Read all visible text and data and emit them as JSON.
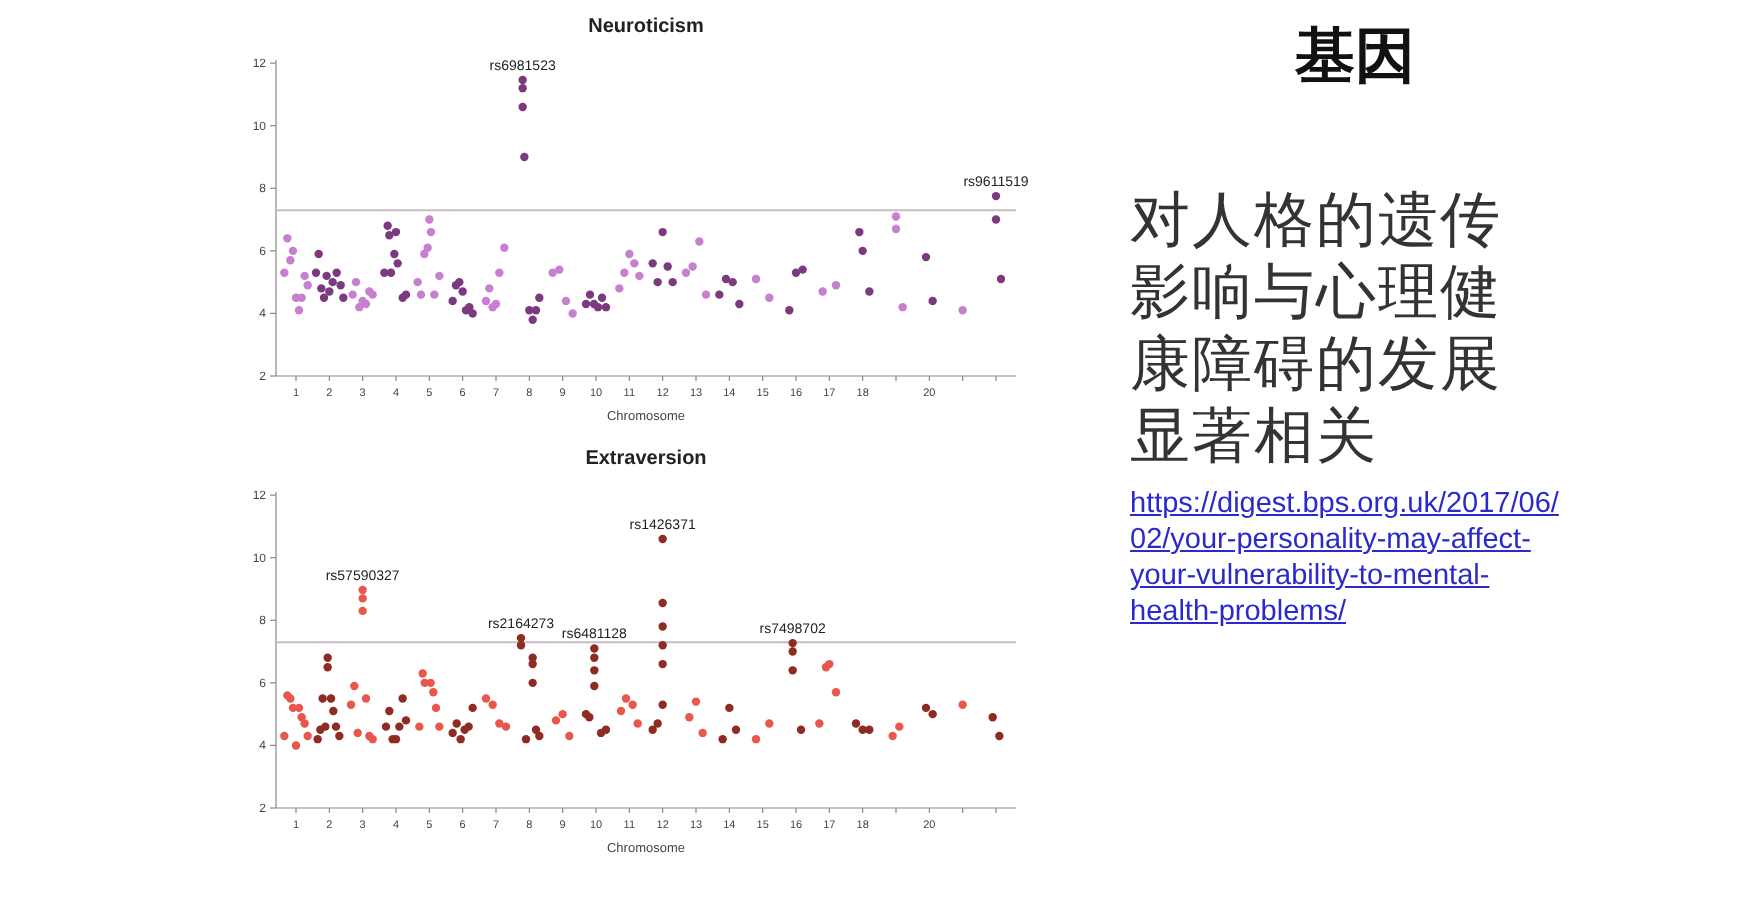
{
  "chart_data": [
    {
      "type": "scatter",
      "title": "Neuroticism",
      "xlabel": "Chromosome",
      "marker": "circle",
      "xlim": [
        0.4,
        22.6
      ],
      "ylim": [
        2,
        12.1
      ],
      "yticks": [
        2,
        4,
        6,
        8,
        10,
        12
      ],
      "xticks": [
        1,
        2,
        3,
        4,
        5,
        6,
        7,
        8,
        9,
        10,
        11,
        12,
        13,
        14,
        15,
        16,
        17,
        18,
        {
          "value": 19,
          "label": null
        },
        20,
        {
          "value": 21,
          "label": null
        },
        {
          "value": 22,
          "label": null
        }
      ],
      "ref_lines": [
        {
          "axis": "y",
          "value": 7.3,
          "color": "#c9bcc4"
        }
      ],
      "annotations": [
        {
          "text": "rs6981523",
          "x": 7.8,
          "y": 11.46
        },
        {
          "text": "rs9611519",
          "x": 22.0,
          "y": 7.75
        }
      ],
      "series": [
        {
          "color": "#c77fcf",
          "x": [
            0.65,
            0.74,
            0.83,
            0.91,
            1.0,
            1.09,
            1.17,
            1.26,
            1.35,
            2.7,
            2.8,
            2.9,
            3.0,
            3.1,
            3.2,
            3.3,
            4.65,
            4.75,
            4.85,
            4.95,
            5.0,
            5.05,
            5.15,
            5.3,
            6.7,
            6.8,
            6.9,
            7.0,
            7.1,
            7.25,
            8.7,
            8.9,
            9.1,
            9.3,
            10.7,
            10.85,
            11.0,
            11.15,
            11.3,
            12.7,
            12.9,
            13.1,
            13.3,
            14.8,
            15.2,
            16.8,
            17.2,
            19.0,
            19.0,
            19.2,
            21.0
          ],
          "values": [
            5.3,
            6.4,
            5.7,
            6.0,
            4.5,
            4.1,
            4.5,
            5.2,
            4.9,
            4.6,
            5.0,
            4.2,
            4.4,
            4.3,
            4.7,
            4.6,
            5.0,
            4.6,
            5.9,
            6.1,
            7.0,
            6.6,
            4.6,
            5.2,
            4.4,
            4.8,
            4.2,
            4.3,
            5.3,
            6.1,
            5.3,
            5.4,
            4.4,
            4.0,
            4.8,
            5.3,
            5.9,
            5.6,
            5.2,
            5.3,
            5.5,
            6.3,
            4.6,
            5.1,
            4.5,
            4.7,
            4.9,
            7.1,
            6.7,
            4.2,
            4.1
          ]
        },
        {
          "color": "#7b3a80",
          "x": [
            1.6,
            1.68,
            1.76,
            1.84,
            1.92,
            2.0,
            2.1,
            2.22,
            2.34,
            2.42,
            3.65,
            3.75,
            3.8,
            3.85,
            3.95,
            4.0,
            4.05,
            4.2,
            4.3,
            5.7,
            5.8,
            5.9,
            6.0,
            6.1,
            6.2,
            6.3,
            7.8,
            7.8,
            7.8,
            7.85,
            8.0,
            8.1,
            8.2,
            8.3,
            9.7,
            9.82,
            9.94,
            10.06,
            10.18,
            10.3,
            11.7,
            11.85,
            12.0,
            12.15,
            12.3,
            13.7,
            13.9,
            14.1,
            14.3,
            15.8,
            16.0,
            16.2,
            17.9,
            18.0,
            18.2,
            19.9,
            20.1,
            22.0,
            22.0,
            22.15
          ],
          "values": [
            5.3,
            5.9,
            4.8,
            4.5,
            5.2,
            4.7,
            5.0,
            5.3,
            4.9,
            4.5,
            5.3,
            6.8,
            6.5,
            5.3,
            5.9,
            6.6,
            5.6,
            4.5,
            4.6,
            4.4,
            4.9,
            5.0,
            4.7,
            4.1,
            4.2,
            4.0,
            11.46,
            11.2,
            10.6,
            9.0,
            4.1,
            3.8,
            4.1,
            4.5,
            4.3,
            4.6,
            4.3,
            4.2,
            4.5,
            4.2,
            5.6,
            5.0,
            6.6,
            5.5,
            5.0,
            4.6,
            5.1,
            5.0,
            4.3,
            4.1,
            5.3,
            5.4,
            6.6,
            6.0,
            4.7,
            5.8,
            4.4,
            7.75,
            7.0,
            5.1
          ]
        }
      ]
    },
    {
      "type": "scatter",
      "title": "Extraversion",
      "xlabel": "Chromosome",
      "marker": "circle",
      "xlim": [
        0.4,
        22.6
      ],
      "ylim": [
        2,
        12.1
      ],
      "yticks": [
        2,
        4,
        6,
        8,
        10,
        12
      ],
      "xticks": [
        1,
        2,
        3,
        4,
        5,
        6,
        7,
        8,
        9,
        10,
        11,
        12,
        13,
        14,
        15,
        16,
        17,
        18,
        {
          "value": 19,
          "label": null
        },
        20,
        {
          "value": 21,
          "label": null
        },
        {
          "value": 22,
          "label": null
        }
      ],
      "ref_lines": [
        {
          "axis": "y",
          "value": 7.3,
          "color": "#c9bcc4"
        }
      ],
      "annotations": [
        {
          "text": "rs57590327",
          "x": 3.0,
          "y": 8.97
        },
        {
          "text": "rs2164273",
          "x": 7.75,
          "y": 7.43
        },
        {
          "text": "rs6481128",
          "x": 9.95,
          "y": 7.1
        },
        {
          "text": "rs1426371",
          "x": 12.0,
          "y": 10.6
        },
        {
          "text": "rs7498702",
          "x": 15.9,
          "y": 7.27
        }
      ],
      "series": [
        {
          "color": "#e8574c",
          "x": [
            0.65,
            0.74,
            0.83,
            0.91,
            1.0,
            1.09,
            1.17,
            1.26,
            1.35,
            2.65,
            2.75,
            2.85,
            3.0,
            3.0,
            3.0,
            3.1,
            3.2,
            3.3,
            4.7,
            4.8,
            4.86,
            5.04,
            5.12,
            5.2,
            5.3,
            6.7,
            6.9,
            7.1,
            7.3,
            8.8,
            9.0,
            9.2,
            10.75,
            10.9,
            11.1,
            11.25,
            12.8,
            13.0,
            13.2,
            14.8,
            15.2,
            16.7,
            16.9,
            17.0,
            17.2,
            18.9,
            19.1,
            21.0
          ],
          "values": [
            4.3,
            5.6,
            5.5,
            5.2,
            4.0,
            5.2,
            4.9,
            4.7,
            4.3,
            5.3,
            5.9,
            4.4,
            8.97,
            8.7,
            8.3,
            5.5,
            4.3,
            4.2,
            4.6,
            6.3,
            6.0,
            6.0,
            5.7,
            5.2,
            4.6,
            5.5,
            5.3,
            4.7,
            4.6,
            4.8,
            5.0,
            4.3,
            5.1,
            5.5,
            5.3,
            4.7,
            4.9,
            5.4,
            4.4,
            4.2,
            4.7,
            4.7,
            6.5,
            6.6,
            5.7,
            4.3,
            4.6,
            5.3
          ]
        },
        {
          "color": "#8e2b23",
          "x": [
            1.65,
            1.73,
            1.8,
            1.88,
            1.95,
            1.95,
            2.05,
            2.12,
            2.2,
            2.3,
            3.7,
            3.8,
            3.9,
            4.0,
            4.1,
            4.2,
            4.3,
            5.7,
            5.82,
            5.94,
            6.06,
            6.18,
            6.3,
            7.75,
            7.75,
            7.9,
            8.1,
            8.1,
            8.1,
            8.2,
            8.3,
            9.7,
            9.8,
            9.95,
            9.95,
            9.95,
            9.95,
            10.15,
            10.3,
            11.7,
            11.85,
            12.0,
            12.0,
            12.0,
            12.0,
            12.0,
            12.0,
            13.8,
            14.0,
            14.2,
            15.9,
            15.9,
            15.9,
            16.15,
            17.8,
            18.0,
            18.2,
            19.9,
            20.1,
            21.9,
            22.1
          ],
          "values": [
            4.2,
            4.5,
            5.5,
            4.6,
            6.8,
            6.5,
            5.5,
            5.1,
            4.6,
            4.3,
            4.6,
            5.1,
            4.2,
            4.2,
            4.6,
            5.5,
            4.8,
            4.4,
            4.7,
            4.2,
            4.5,
            4.6,
            5.2,
            7.43,
            7.2,
            4.2,
            6.8,
            6.6,
            6.0,
            4.5,
            4.3,
            5.0,
            4.9,
            7.1,
            6.8,
            6.4,
            5.9,
            4.4,
            4.5,
            4.5,
            4.7,
            10.6,
            8.55,
            7.8,
            7.2,
            6.6,
            5.3,
            4.2,
            5.2,
            4.5,
            7.27,
            7.0,
            6.4,
            4.5,
            4.7,
            4.5,
            4.5,
            5.2,
            5.0,
            4.9,
            4.3
          ]
        }
      ]
    },
    {
      "type": "other",
      "title": "基因",
      "annotations": [
        "对人格的遗传影响与心理健康障碍的发展显著相关",
        "https://digest.bps.org.uk/2017/06/02/your-personality-may-affect-your-vulnerability-to-mental-health-problems/"
      ]
    }
  ]
}
